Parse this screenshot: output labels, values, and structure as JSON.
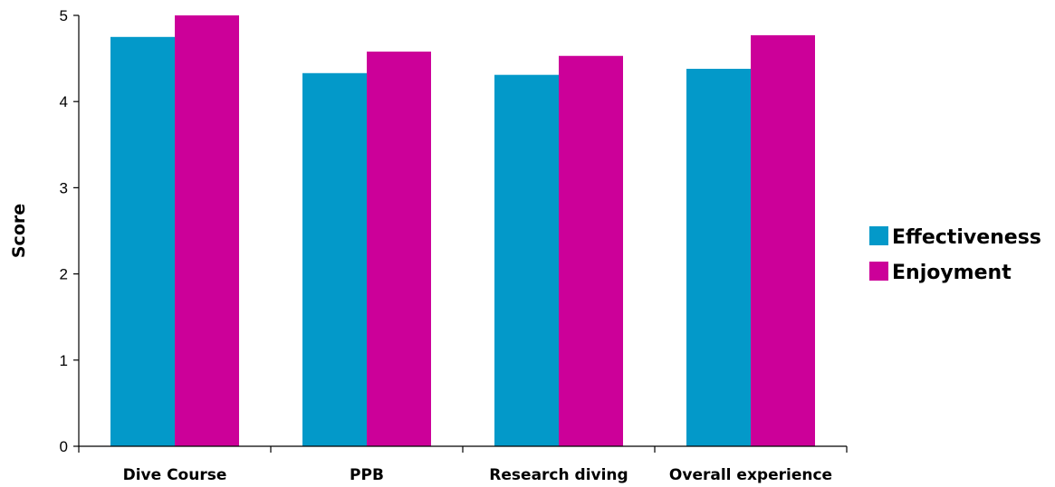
{
  "chart_data": {
    "type": "bar",
    "categories": [
      "Dive Course",
      "PPB",
      "Research diving",
      "Overall experience"
    ],
    "series": [
      {
        "name": "Effectiveness",
        "color": "#0399c9",
        "values": [
          4.75,
          4.33,
          4.31,
          4.38
        ]
      },
      {
        "name": "Enjoyment",
        "color": "#cc0099",
        "values": [
          5.0,
          4.58,
          4.53,
          4.77
        ]
      }
    ],
    "title": "",
    "xlabel": "",
    "ylabel": "Score",
    "ylim": [
      0,
      5
    ],
    "yticks": [
      "0",
      "1",
      "2",
      "3",
      "4",
      "5"
    ],
    "grid": false,
    "legend_position": "right"
  }
}
